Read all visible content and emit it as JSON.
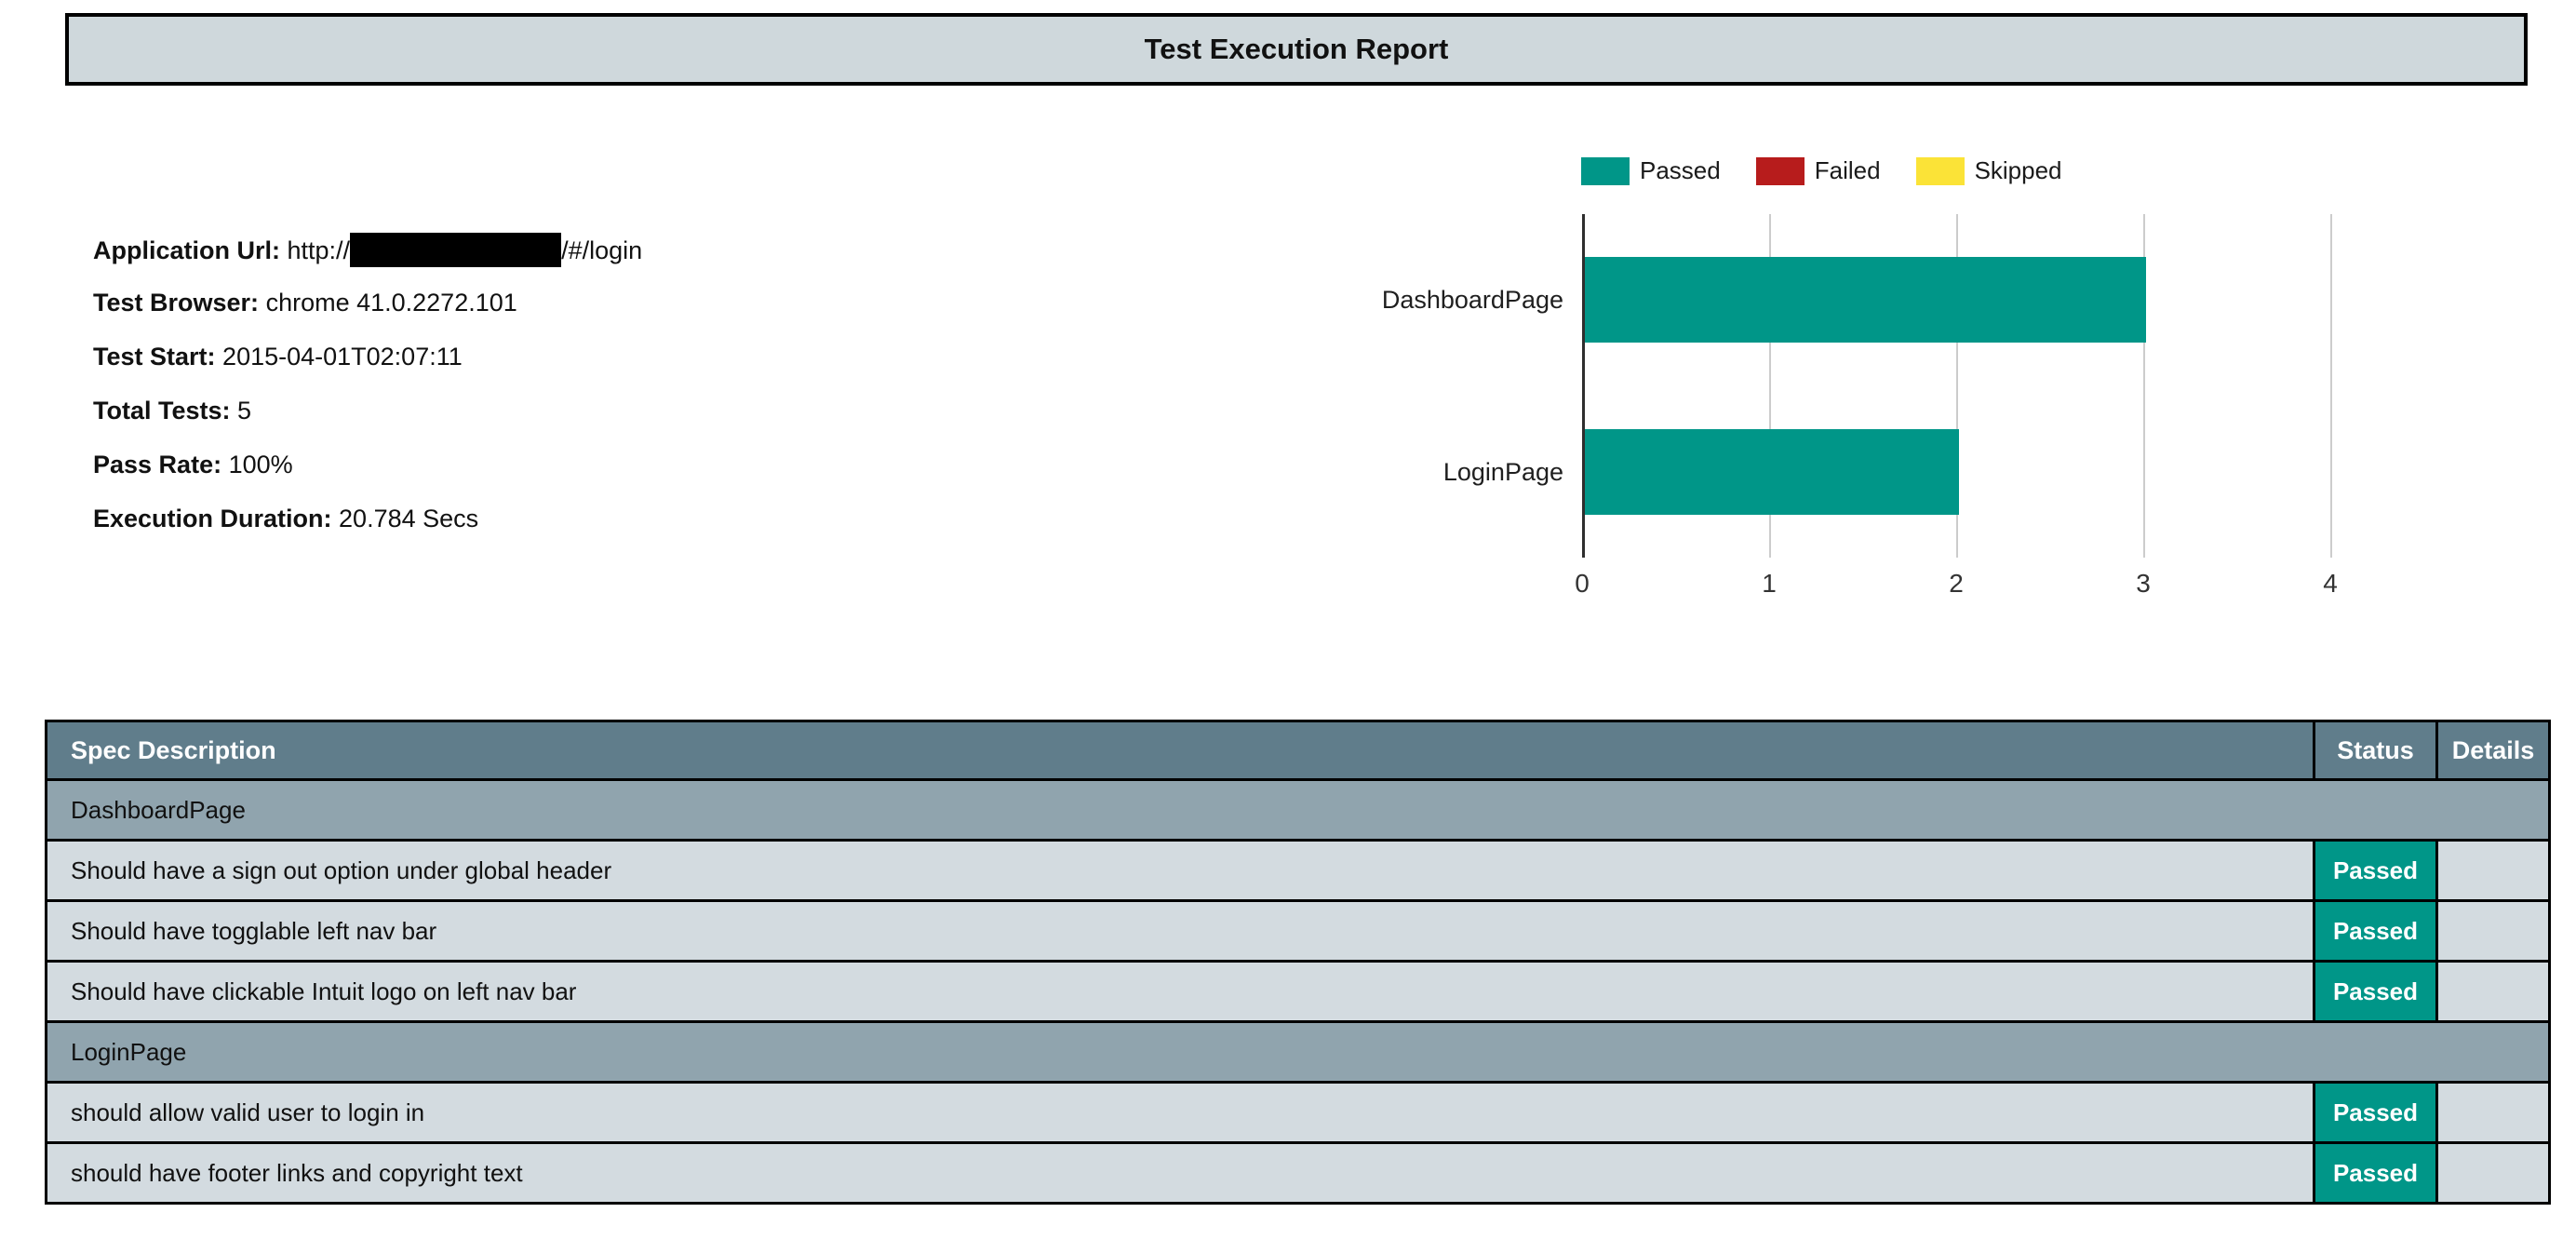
{
  "page": {
    "title": "Test Execution Report"
  },
  "info": {
    "fields": [
      {
        "label": "Application Url:",
        "value_prefix": "http://",
        "value_redacted": true,
        "value_suffix": "/#/login"
      },
      {
        "label": "Test Browser:",
        "value": "chrome 41.0.2272.101"
      },
      {
        "label": "Test Start:",
        "value": "2015-04-01T02:07:11"
      },
      {
        "label": "Total Tests:",
        "value": "5"
      },
      {
        "label": "Pass Rate:",
        "value": "100%"
      },
      {
        "label": "Execution Duration:",
        "value": "20.784 Secs"
      }
    ]
  },
  "chart_data": {
    "type": "bar",
    "orientation": "horizontal",
    "title": "",
    "xlabel": "",
    "ylabel": "",
    "categories": [
      "DashboardPage",
      "LoginPage"
    ],
    "series": [
      {
        "name": "Passed",
        "color": "#009688",
        "values": [
          3,
          2
        ]
      },
      {
        "name": "Failed",
        "color": "#b71c1c",
        "values": [
          0,
          0
        ]
      },
      {
        "name": "Skipped",
        "color": "#fbe337",
        "values": [
          0,
          0
        ]
      }
    ],
    "xlim": [
      0,
      4
    ],
    "xticks": [
      0,
      1,
      2,
      3,
      4
    ],
    "grid": true,
    "legend_position": "top"
  },
  "table": {
    "headers": [
      "Spec Description",
      "Status",
      "Details"
    ],
    "rows": [
      {
        "type": "group",
        "label": "DashboardPage"
      },
      {
        "type": "spec",
        "description": "Should have a sign out option under global header",
        "status": "Passed",
        "details": ""
      },
      {
        "type": "spec",
        "description": "Should have togglable left nav bar",
        "status": "Passed",
        "details": ""
      },
      {
        "type": "spec",
        "description": "Should have clickable Intuit logo on left nav bar",
        "status": "Passed",
        "details": ""
      },
      {
        "type": "group",
        "label": "LoginPage"
      },
      {
        "type": "spec",
        "description": "should allow valid user to login in",
        "status": "Passed",
        "details": ""
      },
      {
        "type": "spec",
        "description": "should have footer links and copyright text",
        "status": "Passed",
        "details": ""
      }
    ]
  },
  "colors": {
    "passed": "#009688",
    "failed": "#b71c1c",
    "skipped": "#fbe337",
    "title_bar_bg": "#cfd8dc",
    "table_header_bg": "#607d8b",
    "group_row_bg": "#90a4ae",
    "data_row_bg": "#d3dbe0",
    "grid_line": "#cccccc",
    "axis_line": "#2e2e2e"
  }
}
